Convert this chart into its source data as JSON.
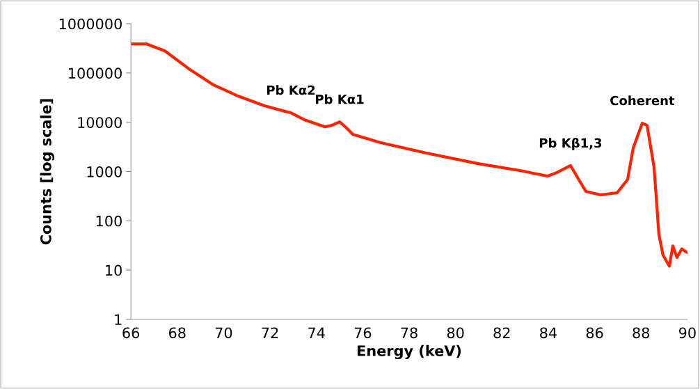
{
  "chart_data": {
    "type": "line",
    "xlabel": "Energy (keV)",
    "ylabel": "Counts [log scale]",
    "log": true,
    "grid": false,
    "legend": false,
    "marker": "none",
    "line_style": "solid",
    "x": [
      66.06,
      66.66,
      67.47,
      68.55,
      69.57,
      70.56,
      71.76,
      72.66,
      72.9,
      73.47,
      74.37,
      74.67,
      75.0,
      75.27,
      75.57,
      75.66,
      76.77,
      78.75,
      80.97,
      82.77,
      83.97,
      84.36,
      84.96,
      85.35,
      85.62,
      86.25,
      86.97,
      87.42,
      87.66,
      88.05,
      88.26,
      88.56,
      88.77,
      88.95,
      89.22,
      89.37,
      89.55,
      89.76,
      89.97
    ],
    "series": [
      {
        "color": "#ff2200",
        "values": [
          390000,
          390000,
          280000,
          117000,
          57000,
          35000,
          21600,
          16600,
          15600,
          11300,
          8100,
          8700,
          10200,
          7900,
          5700,
          5500,
          3850,
          2370,
          1450,
          1050,
          810,
          950,
          1320,
          645,
          395,
          336,
          371,
          687,
          2970,
          9570,
          8680,
          1240,
          53,
          20,
          12,
          31,
          18,
          27,
          23
        ]
      }
    ],
    "xlim": [
      66,
      90
    ],
    "xticks": [
      66,
      68,
      70,
      72,
      74,
      76,
      78,
      80,
      82,
      84,
      86,
      88,
      90
    ],
    "ylim": [
      1,
      1000000
    ],
    "yticks": [
      1,
      10,
      100,
      1000,
      10000,
      100000,
      1000000
    ],
    "annotations": [
      {
        "text": "Pb Kα2",
        "x": 72.9,
        "y": 15600
      },
      {
        "text": "Pb Kα1",
        "x": 75.0,
        "y": 10200
      },
      {
        "text": "Pb Kβ1,3",
        "x": 84.96,
        "y": 1320
      },
      {
        "text": "Coherent",
        "x": 88.05,
        "y": 9570
      }
    ]
  }
}
